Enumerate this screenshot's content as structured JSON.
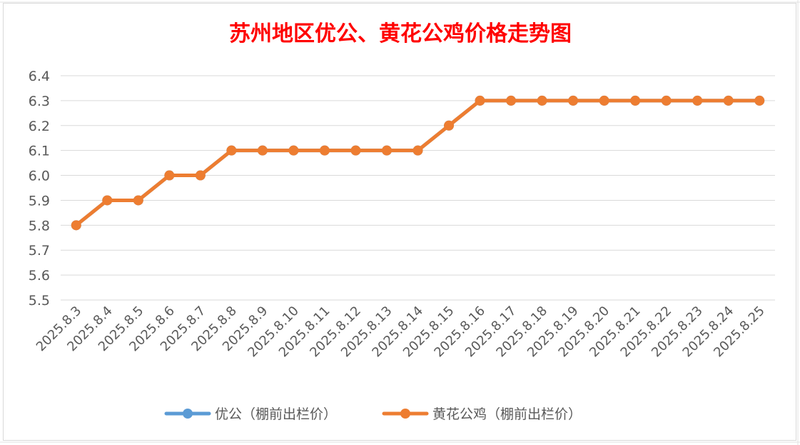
{
  "chart_data": {
    "type": "line",
    "title": "苏州地区优公、黄花公鸡价格走势图",
    "xlabel": "",
    "ylabel": "",
    "categories": [
      "2025.8.3",
      "2025.8.4",
      "2025.8.5",
      "2025.8.6",
      "2025.8.7",
      "2025.8.8",
      "2025.8.9",
      "2025.8.10",
      "2025.8.11",
      "2025.8.12",
      "2025.8.13",
      "2025.8.14",
      "2025.8.15",
      "2025.8.16",
      "2025.8.17",
      "2025.8.18",
      "2025.8.19",
      "2025.8.20",
      "2025.8.21",
      "2025.8.22",
      "2025.8.23",
      "2025.8.24",
      "2025.8.25"
    ],
    "ylim": [
      5.5,
      6.4
    ],
    "yticks": [
      "5.5",
      "5.6",
      "5.7",
      "5.8",
      "5.9",
      "6.0",
      "6.1",
      "6.2",
      "6.3",
      "6.4"
    ],
    "grid": true,
    "legend_position": "bottom",
    "series": [
      {
        "name": "优公（棚前出栏价）",
        "color": "#5b9bd5",
        "values": [
          5.8,
          5.9,
          5.9,
          6.0,
          6.0,
          6.1,
          6.1,
          6.1,
          6.1,
          6.1,
          6.1,
          6.1,
          6.2,
          6.3,
          6.3,
          6.3,
          6.3,
          6.3,
          6.3,
          6.3,
          6.3,
          6.3,
          6.3
        ]
      },
      {
        "name": "黄花公鸡（棚前出栏价）",
        "color": "#ed7d31",
        "values": [
          5.8,
          5.9,
          5.9,
          6.0,
          6.0,
          6.1,
          6.1,
          6.1,
          6.1,
          6.1,
          6.1,
          6.1,
          6.2,
          6.3,
          6.3,
          6.3,
          6.3,
          6.3,
          6.3,
          6.3,
          6.3,
          6.3,
          6.3
        ]
      }
    ]
  }
}
